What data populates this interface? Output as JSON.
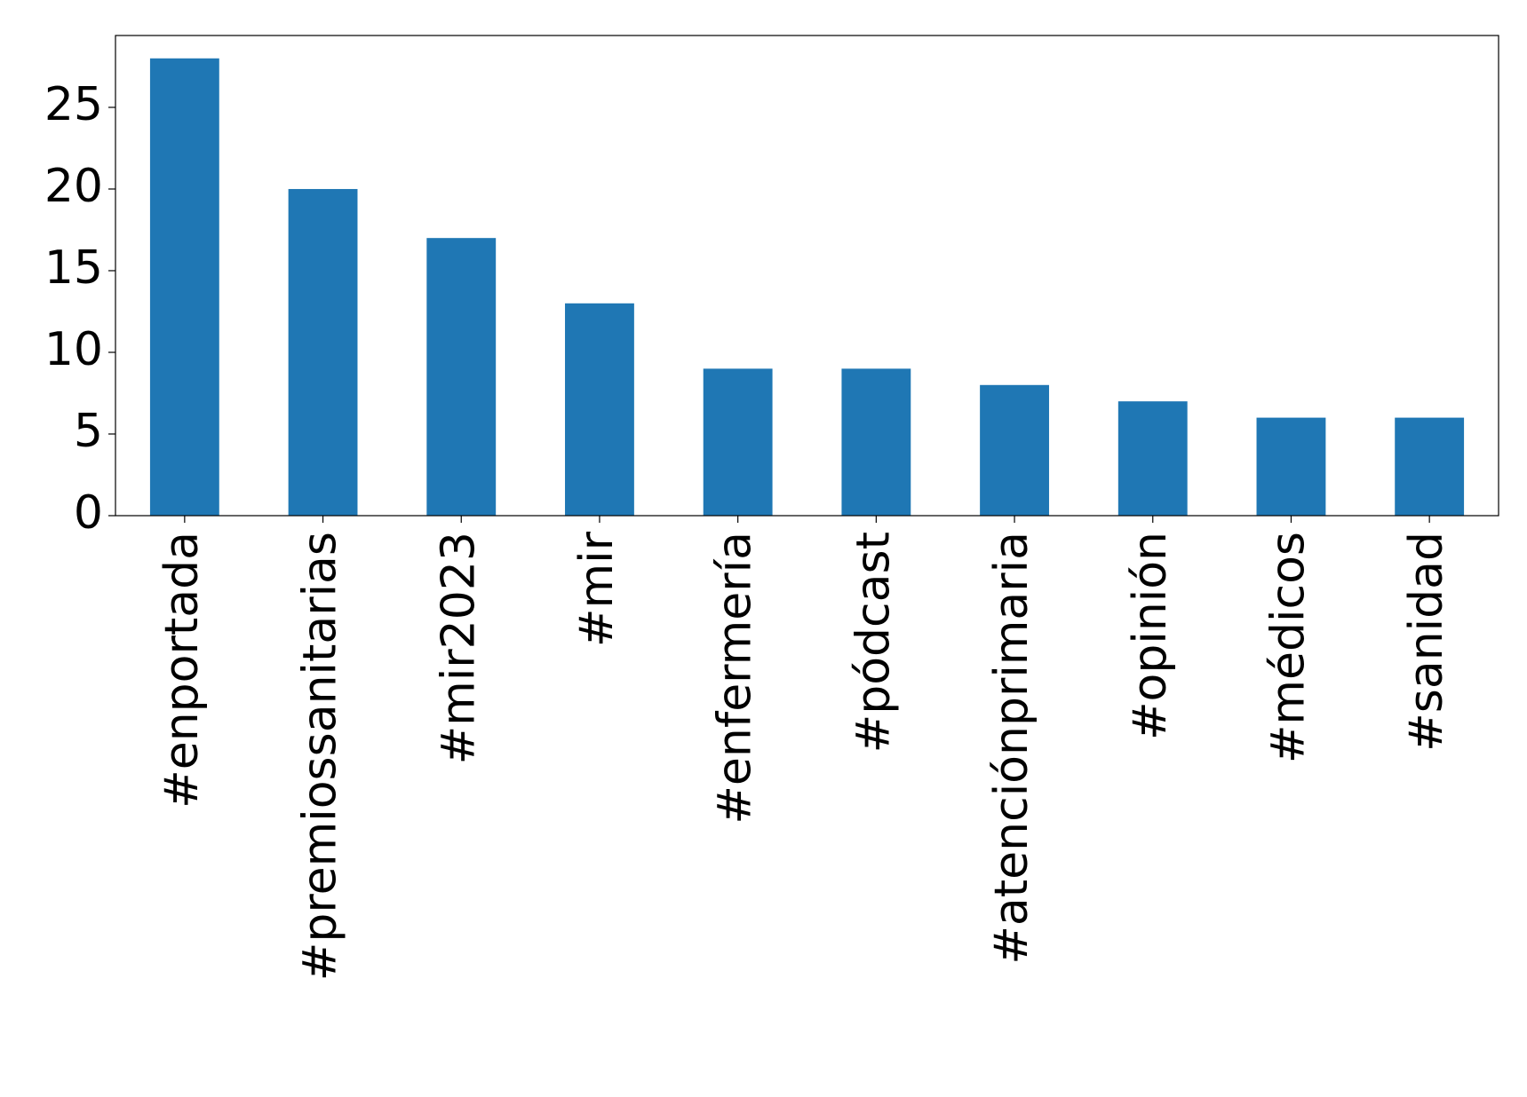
{
  "chart_data": {
    "type": "bar",
    "categories": [
      "#enportada",
      "#premiossanitarias",
      "#mir2023",
      "#mir",
      "#enfermería",
      "#pódcast",
      "#atenciónprimaria",
      "#opinión",
      "#médicos",
      "#sanidad"
    ],
    "values": [
      28,
      20,
      17,
      13,
      9,
      9,
      8,
      7,
      6,
      6
    ],
    "color": "#1f77b4",
    "ylim": [
      0,
      29.4
    ],
    "yticks": [
      0,
      5,
      10,
      15,
      20,
      25
    ],
    "grid": false
  }
}
